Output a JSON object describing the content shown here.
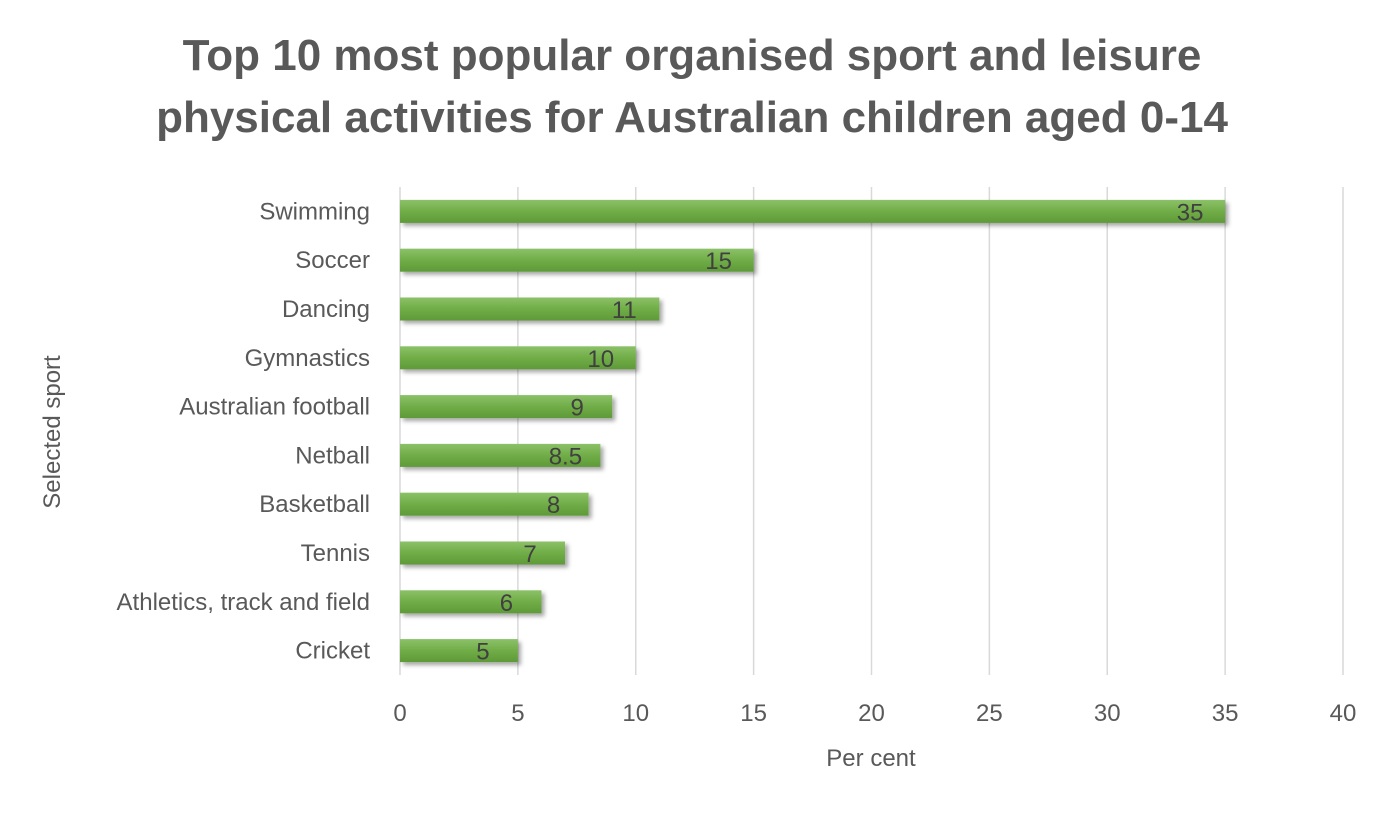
{
  "chart_data": {
    "type": "bar",
    "orientation": "horizontal",
    "title": "Top 10 most popular organised sport and leisure physical activities for Australian children aged 0-14",
    "title_lines": [
      "Top 10 most popular organised sport and leisure",
      "physical activities for Australian children aged 0-14"
    ],
    "xlabel": "Per cent",
    "ylabel": "Selected sport",
    "categories": [
      "Swimming",
      "Soccer",
      "Dancing",
      "Gymnastics",
      "Australian football",
      "Netball",
      "Basketball",
      "Tennis",
      "Athletics, track and field",
      "Cricket"
    ],
    "values": [
      35,
      15,
      11,
      10,
      9,
      8.5,
      8,
      7,
      6,
      5
    ],
    "data_labels": [
      "35",
      "15",
      "11",
      "10",
      "9",
      "8.5",
      "8",
      "7",
      "6",
      "5"
    ],
    "xlim": [
      0,
      40
    ],
    "xticks": [
      0,
      5,
      10,
      15,
      20,
      25,
      30,
      35,
      40
    ],
    "xtick_labels": [
      "0",
      "5",
      "10",
      "15",
      "20",
      "25",
      "30",
      "35",
      "40"
    ],
    "grid": "vertical",
    "legend": "none",
    "bar_color": "#70ad47",
    "bar_color_light": "#8cc168",
    "bar_color_dark": "#5e9a38"
  }
}
